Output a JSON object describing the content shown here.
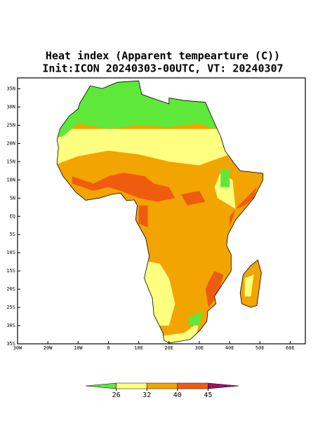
{
  "title": [
    "Heat index (Apparent tempearture (C))",
    "Init:ICON 20240303-00UTC, VT: 20240307"
  ],
  "map": {
    "xlim": [
      -30,
      65
    ],
    "ylim": [
      -35,
      38
    ],
    "xticks": [
      {
        "value": -30,
        "label": "30W"
      },
      {
        "value": -20,
        "label": "20W"
      },
      {
        "value": -10,
        "label": "10W"
      },
      0,
      {
        "value": 10,
        "label": "10E"
      },
      {
        "value": 20,
        "label": "20E"
      },
      {
        "value": 30,
        "label": "30E"
      },
      {
        "value": 40,
        "label": "40E"
      },
      {
        "value": 50,
        "label": "50E"
      },
      {
        "value": 60,
        "label": "60E"
      }
    ],
    "yticks": [
      {
        "value": 35,
        "label": "35N"
      },
      {
        "value": 30,
        "label": "30N"
      },
      {
        "value": 25,
        "label": "25N"
      },
      {
        "value": 20,
        "label": "20N"
      },
      {
        "value": 15,
        "label": "15N"
      },
      {
        "value": 10,
        "label": "10N"
      },
      {
        "value": 5,
        "label": "5N"
      },
      {
        "value": 0,
        "label": "EQ"
      },
      {
        "value": -5,
        "label": "5S"
      },
      {
        "value": -10,
        "label": "10S"
      },
      {
        "value": -15,
        "label": "15S"
      },
      {
        "value": -20,
        "label": "20S"
      },
      {
        "value": -25,
        "label": "25S"
      },
      {
        "value": -30,
        "label": "30S"
      },
      {
        "value": -35,
        "label": "35S"
      }
    ]
  },
  "colorbar": {
    "levels": [
      26,
      32,
      40,
      45
    ],
    "colors": [
      "#5ee83a",
      "#ffff80",
      "#f2a400",
      "#ef5c10",
      "#a0106a"
    ]
  }
}
